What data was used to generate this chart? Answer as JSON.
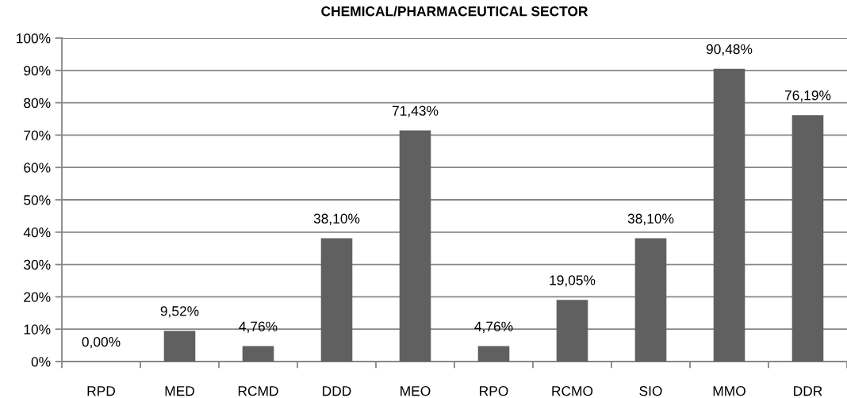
{
  "chart_data": {
    "type": "bar",
    "title": "CHEMICAL/PHARMACEUTICAL SECTOR",
    "categories": [
      "RPD",
      "MED",
      "RCMD",
      "DDD",
      "MEO",
      "RPO",
      "RCMO",
      "SIO",
      "MMO",
      "DDR"
    ],
    "values": [
      0,
      9.52,
      4.76,
      38.1,
      71.43,
      4.76,
      19.05,
      38.1,
      90.48,
      76.19
    ],
    "color": "#606060",
    "value_labels": [
      "0,00%",
      "9,52%",
      "4,76%",
      "38,10%",
      "71,43%",
      "4,76%",
      "19,05%",
      "38,10%",
      "90,48%",
      "76,19%"
    ],
    "ylim": [
      0,
      100
    ],
    "yticks": [
      {
        "value": 0,
        "label": "0%"
      },
      {
        "value": 10,
        "label": "10%"
      },
      {
        "value": 20,
        "label": "20%"
      },
      {
        "value": 30,
        "label": "30%"
      },
      {
        "value": 40,
        "label": "40%"
      },
      {
        "value": 50,
        "label": "50%"
      },
      {
        "value": 60,
        "label": "60%"
      },
      {
        "value": 70,
        "label": "70%"
      },
      {
        "value": 80,
        "label": "80%"
      },
      {
        "value": 90,
        "label": "90%"
      },
      {
        "value": 100,
        "label": "100%"
      }
    ],
    "grid": "y"
  }
}
